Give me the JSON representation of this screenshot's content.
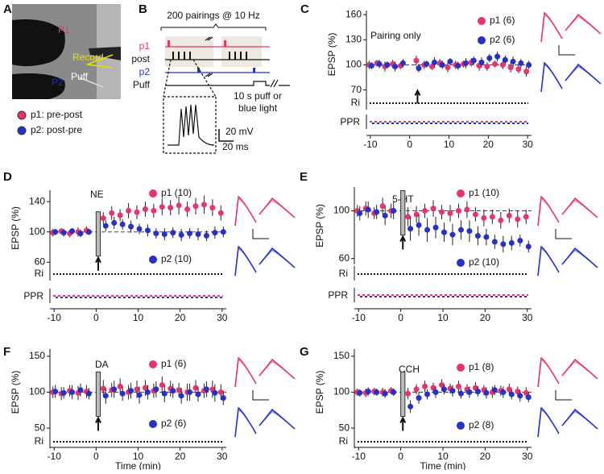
{
  "photo": {
    "label": "A",
    "p1": "P1",
    "p2": "P2",
    "record": "Record",
    "puff": "Puff",
    "legend": [
      "p1: pre-post",
      "p2: post-pre"
    ]
  },
  "protocol": {
    "label": "B",
    "title": "200 pairings @ 10 Hz",
    "rows": [
      "p1",
      "post",
      "p2",
      "Puff"
    ],
    "light_note": [
      "10 s puff or",
      "blue light"
    ],
    "scale_mv": "20 mV",
    "scale_ms": "20 ms"
  },
  "chart_data": [
    {
      "type": "errorbar",
      "panel_label": "C",
      "annotation": "Pairing only",
      "ylabel": "EPSP (%)",
      "sublabels": [
        "Ri",
        "PPR"
      ],
      "x": [
        -10,
        -8,
        -6,
        -4,
        -2,
        2,
        4,
        6,
        8,
        10,
        12,
        14,
        16,
        18,
        20,
        22,
        24,
        26,
        28,
        30
      ],
      "xlim": [
        -11,
        31
      ],
      "xticks": [
        -10,
        0,
        10,
        20,
        30
      ],
      "ylim": [
        60,
        165
      ],
      "yticks": [
        70,
        100,
        130,
        160
      ],
      "reference_line": 100,
      "series": [
        {
          "name": "p1 (6)",
          "color": "#e8336e",
          "values": [
            100,
            102,
            98,
            101,
            99,
            105,
            100,
            98,
            102,
            97,
            100,
            101,
            103,
            99,
            98,
            101,
            100,
            97,
            95,
            92
          ],
          "errors": [
            5,
            4,
            6,
            5,
            4,
            6,
            5,
            4,
            5,
            6,
            5,
            4,
            5,
            6,
            5,
            4,
            5,
            6,
            5,
            6
          ]
        },
        {
          "name": "p2 (6)",
          "color": "#2531c8",
          "values": [
            99,
            101,
            100,
            98,
            102,
            96,
            101,
            103,
            100,
            104,
            99,
            102,
            105,
            103,
            108,
            110,
            106,
            104,
            102,
            100
          ],
          "errors": [
            4,
            5,
            4,
            6,
            5,
            5,
            4,
            6,
            5,
            4,
            5,
            6,
            5,
            6,
            5,
            6,
            5,
            6,
            5,
            5
          ]
        }
      ]
    },
    {
      "type": "errorbar",
      "panel_label": "D",
      "annotation": "NE",
      "ylabel": "EPSP (%)",
      "sublabels": [
        "Ri",
        "PPR"
      ],
      "x": [
        -10,
        -8,
        -6,
        -4,
        -2,
        2,
        4,
        6,
        8,
        10,
        12,
        14,
        16,
        18,
        20,
        22,
        24,
        26,
        28,
        30
      ],
      "xlim": [
        -11,
        31
      ],
      "xticks": [
        -10,
        0,
        10,
        20,
        30
      ],
      "ylim": [
        55,
        155
      ],
      "yticks": [
        60,
        100,
        140
      ],
      "reference_line": 100,
      "series": [
        {
          "name": "p1 (10)",
          "color": "#e8336e",
          "values": [
            99,
            101,
            98,
            100,
            102,
            118,
            125,
            122,
            128,
            126,
            130,
            128,
            133,
            132,
            135,
            130,
            134,
            136,
            132,
            125
          ],
          "errors": [
            5,
            4,
            5,
            6,
            5,
            8,
            9,
            8,
            10,
            9,
            10,
            9,
            11,
            10,
            12,
            10,
            11,
            12,
            11,
            10
          ]
        },
        {
          "name": "p2 (10)",
          "color": "#2531c8",
          "values": [
            100,
            99,
            101,
            98,
            100,
            108,
            112,
            110,
            107,
            104,
            102,
            98,
            97,
            99,
            96,
            98,
            97,
            95,
            99,
            100
          ],
          "errors": [
            4,
            5,
            4,
            5,
            4,
            7,
            8,
            7,
            8,
            7,
            8,
            7,
            8,
            7,
            8,
            7,
            8,
            7,
            8,
            7
          ]
        }
      ]
    },
    {
      "type": "errorbar",
      "panel_label": "E",
      "annotation": "5-HT",
      "ylabel": "EPSP (%)",
      "sublabels": [
        "Ri",
        "PPR"
      ],
      "x": [
        -10,
        -8,
        -6,
        -4,
        -2,
        2,
        4,
        6,
        8,
        10,
        12,
        14,
        16,
        18,
        20,
        22,
        24,
        26,
        28,
        30
      ],
      "xlim": [
        -11,
        31
      ],
      "xticks": [
        -10,
        0,
        10,
        20,
        30
      ],
      "ylim": [
        55,
        120
      ],
      "yticks": [
        60,
        100
      ],
      "reference_line": 100,
      "series": [
        {
          "name": "p1 (10)",
          "color": "#e8336e",
          "values": [
            100,
            102,
            98,
            104,
            100,
            95,
            97,
            100,
            102,
            99,
            98,
            100,
            101,
            97,
            94,
            95,
            92,
            96,
            93,
            95
          ],
          "errors": [
            5,
            6,
            5,
            7,
            6,
            8,
            7,
            6,
            7,
            6,
            7,
            6,
            7,
            6,
            7,
            6,
            7,
            6,
            7,
            6
          ]
        },
        {
          "name": "p2 (10)",
          "color": "#2531c8",
          "values": [
            98,
            101,
            99,
            96,
            100,
            85,
            88,
            84,
            86,
            82,
            80,
            84,
            83,
            79,
            78,
            74,
            72,
            73,
            75,
            70
          ],
          "errors": [
            6,
            7,
            6,
            8,
            7,
            10,
            9,
            10,
            9,
            8,
            9,
            8,
            9,
            8,
            7,
            6,
            7,
            6,
            5,
            5
          ]
        }
      ]
    },
    {
      "type": "errorbar",
      "panel_label": "F",
      "annotation": "DA",
      "ylabel": "EPSP (%)",
      "sublabels": [
        "Ri"
      ],
      "xlabel": "Time (min)",
      "x": [
        -10,
        -8,
        -6,
        -4,
        -2,
        2,
        4,
        6,
        8,
        10,
        12,
        14,
        16,
        18,
        20,
        22,
        24,
        26,
        28,
        30
      ],
      "xlim": [
        -11,
        31
      ],
      "xticks": [
        -10,
        0,
        10,
        20,
        30
      ],
      "ylim": [
        40,
        160
      ],
      "yticks": [
        50,
        100,
        150
      ],
      "reference_line": 100,
      "series": [
        {
          "name": "p1 (6)",
          "color": "#e8336e",
          "values": [
            100,
            98,
            102,
            99,
            101,
            105,
            103,
            108,
            100,
            104,
            106,
            102,
            110,
            105,
            103,
            100,
            106,
            102,
            104,
            100
          ],
          "errors": [
            8,
            9,
            8,
            10,
            9,
            12,
            10,
            11,
            10,
            12,
            11,
            10,
            12,
            11,
            10,
            12,
            11,
            10,
            12,
            11
          ]
        },
        {
          "name": "p2 (6)",
          "color": "#2531c8",
          "values": [
            101,
            99,
            100,
            103,
            98,
            95,
            104,
            98,
            102,
            96,
            100,
            104,
            98,
            102,
            95,
            100,
            97,
            104,
            99,
            92
          ],
          "errors": [
            9,
            8,
            10,
            9,
            8,
            11,
            12,
            10,
            11,
            12,
            10,
            11,
            12,
            10,
            11,
            12,
            10,
            11,
            12,
            10
          ]
        }
      ]
    },
    {
      "type": "errorbar",
      "panel_label": "G",
      "annotation": "CCH",
      "ylabel": "EPSP (%)",
      "sublabels": [
        "Ri"
      ],
      "xlabel": "Time (min)",
      "x": [
        -10,
        -8,
        -6,
        -4,
        -2,
        2,
        4,
        6,
        8,
        10,
        12,
        14,
        16,
        18,
        20,
        22,
        24,
        26,
        28,
        30
      ],
      "xlim": [
        -11,
        31
      ],
      "xticks": [
        -10,
        0,
        10,
        20,
        30
      ],
      "ylim": [
        40,
        160
      ],
      "yticks": [
        50,
        100,
        150
      ],
      "reference_line": 100,
      "series": [
        {
          "name": "p1 (8)",
          "color": "#e8336e",
          "values": [
            100,
            99,
            101,
            100,
            102,
            98,
            104,
            108,
            106,
            110,
            105,
            108,
            104,
            106,
            103,
            100,
            102,
            104,
            101,
            99
          ],
          "errors": [
            5,
            6,
            5,
            6,
            5,
            8,
            7,
            8,
            7,
            8,
            7,
            8,
            7,
            8,
            7,
            8,
            7,
            8,
            7,
            8
          ]
        },
        {
          "name": "p2 (8)",
          "color": "#2531c8",
          "values": [
            99,
            101,
            100,
            98,
            100,
            80,
            92,
            97,
            100,
            104,
            102,
            98,
            100,
            101,
            99,
            103,
            100,
            97,
            95,
            93
          ],
          "errors": [
            5,
            6,
            5,
            6,
            5,
            9,
            8,
            7,
            8,
            7,
            8,
            7,
            8,
            7,
            8,
            7,
            8,
            7,
            8,
            7
          ]
        }
      ]
    }
  ]
}
